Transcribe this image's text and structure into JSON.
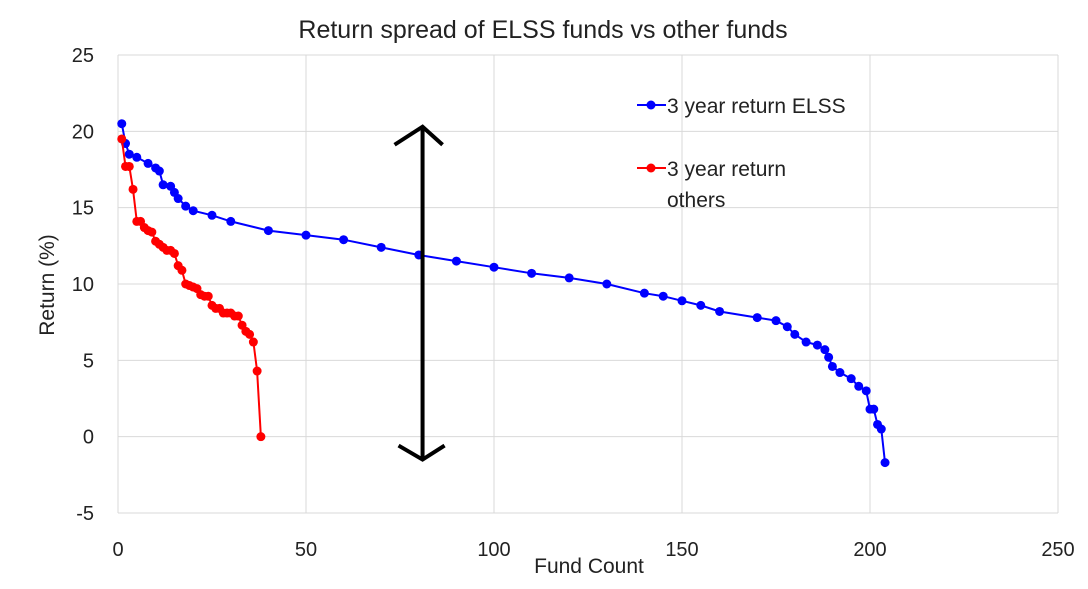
{
  "chart_data": {
    "type": "line",
    "title": "Return spread of ELSS funds vs other funds",
    "xlabel": "Fund Count",
    "ylabel": "Return (%)",
    "xlim": [
      0,
      250
    ],
    "ylim": [
      -5,
      25
    ],
    "x_ticks": [
      "0",
      "50",
      "100",
      "150",
      "200",
      "250"
    ],
    "y_ticks": [
      "-5",
      "0",
      "5",
      "10",
      "15",
      "20",
      "25"
    ],
    "grid": true,
    "legend_position": "top-right",
    "series": [
      {
        "name": "3 year return ELSS",
        "color": "#0000ff",
        "points": [
          [
            1,
            20.5
          ],
          [
            2,
            19.2
          ],
          [
            3,
            18.5
          ],
          [
            5,
            18.3
          ],
          [
            8,
            17.9
          ],
          [
            10,
            17.6
          ],
          [
            11,
            17.4
          ],
          [
            12,
            16.5
          ],
          [
            14,
            16.4
          ],
          [
            15,
            16.0
          ],
          [
            16,
            15.6
          ],
          [
            18,
            15.1
          ],
          [
            20,
            14.8
          ],
          [
            25,
            14.5
          ],
          [
            30,
            14.1
          ],
          [
            40,
            13.5
          ],
          [
            50,
            13.2
          ],
          [
            60,
            12.9
          ],
          [
            70,
            12.4
          ],
          [
            80,
            11.9
          ],
          [
            90,
            11.5
          ],
          [
            100,
            11.1
          ],
          [
            110,
            10.7
          ],
          [
            120,
            10.4
          ],
          [
            130,
            10.0
          ],
          [
            140,
            9.4
          ],
          [
            145,
            9.2
          ],
          [
            150,
            8.9
          ],
          [
            155,
            8.6
          ],
          [
            160,
            8.2
          ],
          [
            170,
            7.8
          ],
          [
            175,
            7.6
          ],
          [
            178,
            7.2
          ],
          [
            180,
            6.7
          ],
          [
            183,
            6.2
          ],
          [
            186,
            6.0
          ],
          [
            188,
            5.7
          ],
          [
            189,
            5.2
          ],
          [
            190,
            4.6
          ],
          [
            192,
            4.2
          ],
          [
            195,
            3.8
          ],
          [
            197,
            3.3
          ],
          [
            199,
            3.0
          ],
          [
            200,
            1.8
          ],
          [
            201,
            1.8
          ],
          [
            202,
            0.8
          ],
          [
            203,
            0.5
          ],
          [
            204,
            -1.7
          ]
        ]
      },
      {
        "name": "3 year return others",
        "color": "#ff0000",
        "points": [
          [
            1,
            19.5
          ],
          [
            2,
            17.7
          ],
          [
            3,
            17.7
          ],
          [
            4,
            16.2
          ],
          [
            5,
            14.1
          ],
          [
            6,
            14.1
          ],
          [
            7,
            13.7
          ],
          [
            8,
            13.5
          ],
          [
            9,
            13.4
          ],
          [
            10,
            12.8
          ],
          [
            11,
            12.6
          ],
          [
            12,
            12.4
          ],
          [
            13,
            12.2
          ],
          [
            14,
            12.2
          ],
          [
            15,
            12.0
          ],
          [
            16,
            11.2
          ],
          [
            17,
            10.9
          ],
          [
            18,
            10.0
          ],
          [
            19,
            9.9
          ],
          [
            20,
            9.8
          ],
          [
            21,
            9.7
          ],
          [
            22,
            9.3
          ],
          [
            23,
            9.2
          ],
          [
            24,
            9.2
          ],
          [
            25,
            8.6
          ],
          [
            26,
            8.4
          ],
          [
            27,
            8.4
          ],
          [
            28,
            8.1
          ],
          [
            29,
            8.1
          ],
          [
            30,
            8.1
          ],
          [
            31,
            7.9
          ],
          [
            32,
            7.9
          ],
          [
            33,
            7.3
          ],
          [
            34,
            6.9
          ],
          [
            35,
            6.7
          ],
          [
            36,
            6.2
          ],
          [
            37,
            4.3
          ],
          [
            38,
            0.0
          ]
        ]
      }
    ],
    "annotation": {
      "type": "double-arrow",
      "x": 81,
      "y_top": 20.3,
      "y_bottom": -1.5
    }
  }
}
